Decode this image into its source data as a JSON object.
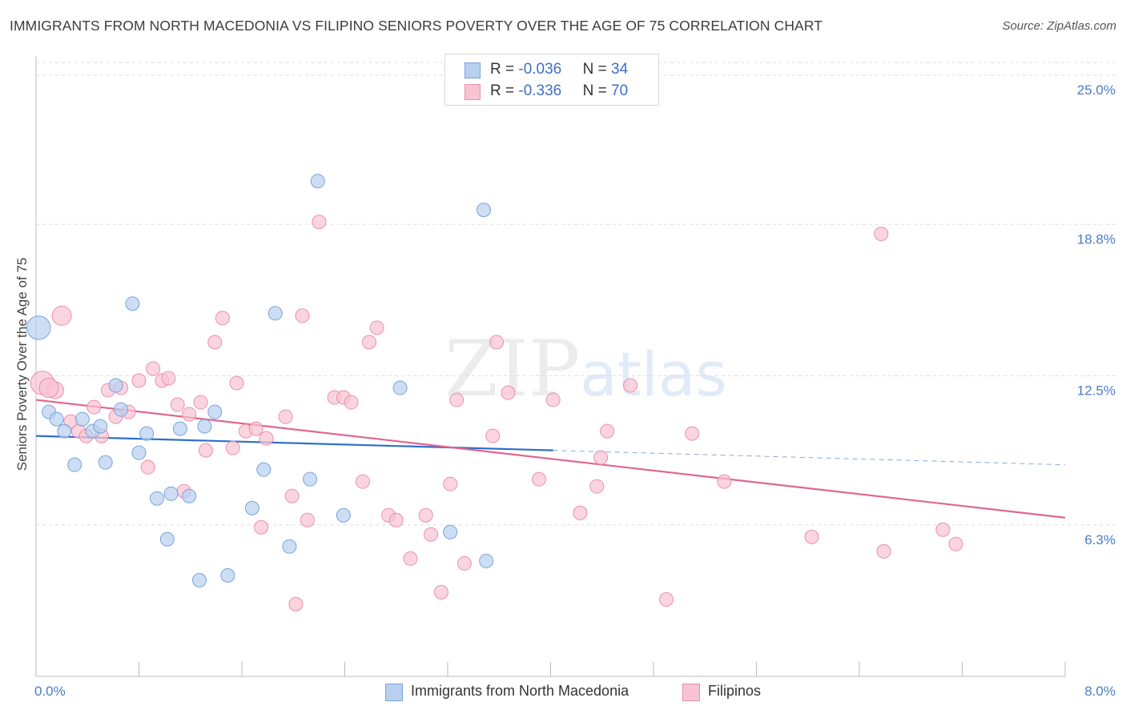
{
  "title": "IMMIGRANTS FROM NORTH MACEDONIA VS FILIPINO SENIORS POVERTY OVER THE AGE OF 75 CORRELATION CHART",
  "source": "Source: ZipAtlas.com",
  "watermark": {
    "zip": "ZIP",
    "atlas": "atlas"
  },
  "legend": {
    "rows": [
      {
        "r_label": "R = ",
        "r_value": "-0.036",
        "n_label": "N = ",
        "n_value": "34"
      },
      {
        "r_label": "R = ",
        "r_value": "-0.336",
        "n_label": "N = ",
        "n_value": "70"
      }
    ]
  },
  "bottom_legend": [
    {
      "label": "Immigrants from North Macedonia"
    },
    {
      "label": "Filipinos"
    }
  ],
  "colors": {
    "blue_fill": "#b8d0f0",
    "blue_stroke": "#7aa3dc",
    "blue_line": "#2f6fcc",
    "pink_fill": "#f8c3d3",
    "pink_stroke": "#ec8fac",
    "pink_line": "#e06690",
    "grid": "#dddddd",
    "tick_label": "#4a7cc7"
  },
  "chart_data": {
    "type": "scatter",
    "title": "IMMIGRANTS FROM NORTH MACEDONIA VS FILIPINO SENIORS POVERTY OVER THE AGE OF 75 CORRELATION CHART",
    "xlabel": "",
    "ylabel": "Seniors Poverty Over the Age of 75",
    "xlim": [
      0,
      8.0
    ],
    "ylim": [
      0,
      25.8
    ],
    "x_tick_labels": [
      "0.0%",
      "8.0%"
    ],
    "y_ticks": [
      6.3,
      12.5,
      18.8,
      25.0
    ],
    "y_tick_labels": [
      "6.3%",
      "12.5%",
      "18.8%",
      "25.0%"
    ],
    "grid": true,
    "legend_position": "top-center",
    "series": [
      {
        "name": "Immigrants from North Macedonia",
        "color": "#b8d0f0",
        "r": "-0.036",
        "n": "34",
        "trend": {
          "x": [
            0,
            4.02
          ],
          "y": [
            10.0,
            9.4
          ],
          "dashed_extension_to_x": 8.0,
          "dashed_end_y": 8.8
        },
        "points": [
          {
            "x": 0.02,
            "y": 14.5,
            "s": 3
          },
          {
            "x": 0.1,
            "y": 11.0,
            "s": 1
          },
          {
            "x": 0.16,
            "y": 10.7,
            "s": 1
          },
          {
            "x": 0.22,
            "y": 10.2,
            "s": 1
          },
          {
            "x": 0.3,
            "y": 8.8,
            "s": 1
          },
          {
            "x": 0.36,
            "y": 10.7,
            "s": 1
          },
          {
            "x": 0.44,
            "y": 10.2,
            "s": 1
          },
          {
            "x": 0.5,
            "y": 10.4,
            "s": 1
          },
          {
            "x": 0.54,
            "y": 8.9,
            "s": 1
          },
          {
            "x": 0.62,
            "y": 12.1,
            "s": 1
          },
          {
            "x": 0.66,
            "y": 11.1,
            "s": 1
          },
          {
            "x": 0.75,
            "y": 15.5,
            "s": 1
          },
          {
            "x": 0.8,
            "y": 9.3,
            "s": 1
          },
          {
            "x": 0.86,
            "y": 10.1,
            "s": 1
          },
          {
            "x": 0.94,
            "y": 7.4,
            "s": 1
          },
          {
            "x": 1.02,
            "y": 5.7,
            "s": 1
          },
          {
            "x": 1.05,
            "y": 7.6,
            "s": 1
          },
          {
            "x": 1.12,
            "y": 10.3,
            "s": 1
          },
          {
            "x": 1.19,
            "y": 7.5,
            "s": 1
          },
          {
            "x": 1.27,
            "y": 4.0,
            "s": 1
          },
          {
            "x": 1.31,
            "y": 10.4,
            "s": 1
          },
          {
            "x": 1.39,
            "y": 11.0,
            "s": 1
          },
          {
            "x": 1.49,
            "y": 4.2,
            "s": 1
          },
          {
            "x": 1.68,
            "y": 7.0,
            "s": 1
          },
          {
            "x": 1.77,
            "y": 8.6,
            "s": 1
          },
          {
            "x": 1.86,
            "y": 15.1,
            "s": 1
          },
          {
            "x": 1.97,
            "y": 5.4,
            "s": 1
          },
          {
            "x": 2.13,
            "y": 8.2,
            "s": 1
          },
          {
            "x": 2.19,
            "y": 20.6,
            "s": 1
          },
          {
            "x": 2.39,
            "y": 6.7,
            "s": 1
          },
          {
            "x": 2.83,
            "y": 12.0,
            "s": 1
          },
          {
            "x": 3.22,
            "y": 6.0,
            "s": 1
          },
          {
            "x": 3.5,
            "y": 4.8,
            "s": 1
          },
          {
            "x": 3.48,
            "y": 19.4,
            "s": 1
          }
        ]
      },
      {
        "name": "Filipinos",
        "color": "#f8c3d3",
        "r": "-0.336",
        "n": "70",
        "trend": {
          "x": [
            0,
            8.0
          ],
          "y": [
            11.5,
            6.6
          ]
        },
        "points": [
          {
            "x": 0.05,
            "y": 12.2,
            "s": 3
          },
          {
            "x": 0.15,
            "y": 11.9,
            "s": 1.5
          },
          {
            "x": 0.2,
            "y": 15.0,
            "s": 2
          },
          {
            "x": 0.27,
            "y": 10.6,
            "s": 1
          },
          {
            "x": 0.33,
            "y": 10.2,
            "s": 1
          },
          {
            "x": 0.39,
            "y": 10.0,
            "s": 1
          },
          {
            "x": 0.45,
            "y": 11.2,
            "s": 1
          },
          {
            "x": 0.51,
            "y": 10.0,
            "s": 1
          },
          {
            "x": 0.56,
            "y": 11.9,
            "s": 1
          },
          {
            "x": 0.62,
            "y": 10.8,
            "s": 1
          },
          {
            "x": 0.66,
            "y": 12.0,
            "s": 1
          },
          {
            "x": 0.72,
            "y": 11.0,
            "s": 1
          },
          {
            "x": 0.8,
            "y": 12.3,
            "s": 1
          },
          {
            "x": 0.87,
            "y": 8.7,
            "s": 1
          },
          {
            "x": 0.91,
            "y": 12.8,
            "s": 1
          },
          {
            "x": 0.98,
            "y": 12.3,
            "s": 1
          },
          {
            "x": 1.03,
            "y": 12.4,
            "s": 1
          },
          {
            "x": 1.1,
            "y": 11.3,
            "s": 1
          },
          {
            "x": 1.15,
            "y": 7.7,
            "s": 1
          },
          {
            "x": 1.19,
            "y": 10.9,
            "s": 1
          },
          {
            "x": 1.28,
            "y": 11.4,
            "s": 1
          },
          {
            "x": 1.32,
            "y": 9.4,
            "s": 1
          },
          {
            "x": 1.39,
            "y": 13.9,
            "s": 1
          },
          {
            "x": 1.45,
            "y": 14.9,
            "s": 1
          },
          {
            "x": 1.53,
            "y": 9.5,
            "s": 1
          },
          {
            "x": 1.56,
            "y": 12.2,
            "s": 1
          },
          {
            "x": 1.63,
            "y": 10.2,
            "s": 1
          },
          {
            "x": 1.71,
            "y": 10.3,
            "s": 1
          },
          {
            "x": 1.75,
            "y": 6.2,
            "s": 1
          },
          {
            "x": 1.79,
            "y": 9.9,
            "s": 1
          },
          {
            "x": 1.94,
            "y": 10.8,
            "s": 1
          },
          {
            "x": 1.99,
            "y": 7.5,
            "s": 1
          },
          {
            "x": 2.02,
            "y": 3.0,
            "s": 1
          },
          {
            "x": 2.07,
            "y": 15.0,
            "s": 1
          },
          {
            "x": 2.11,
            "y": 6.5,
            "s": 1
          },
          {
            "x": 2.2,
            "y": 18.9,
            "s": 1
          },
          {
            "x": 2.32,
            "y": 11.6,
            "s": 1
          },
          {
            "x": 2.39,
            "y": 11.6,
            "s": 1
          },
          {
            "x": 2.45,
            "y": 11.4,
            "s": 1
          },
          {
            "x": 2.54,
            "y": 8.1,
            "s": 1
          },
          {
            "x": 2.59,
            "y": 13.9,
            "s": 1
          },
          {
            "x": 2.65,
            "y": 14.5,
            "s": 1
          },
          {
            "x": 2.74,
            "y": 6.7,
            "s": 1
          },
          {
            "x": 2.8,
            "y": 6.5,
            "s": 1
          },
          {
            "x": 2.91,
            "y": 4.9,
            "s": 1
          },
          {
            "x": 3.03,
            "y": 6.7,
            "s": 1
          },
          {
            "x": 3.07,
            "y": 5.9,
            "s": 1
          },
          {
            "x": 3.15,
            "y": 3.5,
            "s": 1
          },
          {
            "x": 3.22,
            "y": 8.0,
            "s": 1
          },
          {
            "x": 3.27,
            "y": 11.5,
            "s": 1
          },
          {
            "x": 3.33,
            "y": 4.7,
            "s": 1
          },
          {
            "x": 3.55,
            "y": 10.0,
            "s": 1
          },
          {
            "x": 3.58,
            "y": 13.9,
            "s": 1
          },
          {
            "x": 3.67,
            "y": 11.8,
            "s": 1
          },
          {
            "x": 3.91,
            "y": 8.2,
            "s": 1
          },
          {
            "x": 4.02,
            "y": 11.5,
            "s": 1
          },
          {
            "x": 4.23,
            "y": 6.8,
            "s": 1
          },
          {
            "x": 4.36,
            "y": 7.9,
            "s": 1
          },
          {
            "x": 4.39,
            "y": 9.1,
            "s": 1
          },
          {
            "x": 4.44,
            "y": 10.2,
            "s": 1
          },
          {
            "x": 4.62,
            "y": 12.1,
            "s": 1
          },
          {
            "x": 4.9,
            "y": 3.2,
            "s": 1
          },
          {
            "x": 5.1,
            "y": 10.1,
            "s": 1
          },
          {
            "x": 5.35,
            "y": 8.1,
            "s": 1
          },
          {
            "x": 6.03,
            "y": 5.8,
            "s": 1
          },
          {
            "x": 6.57,
            "y": 18.4,
            "s": 1
          },
          {
            "x": 6.59,
            "y": 5.2,
            "s": 1
          },
          {
            "x": 7.05,
            "y": 6.1,
            "s": 1
          },
          {
            "x": 7.15,
            "y": 5.5,
            "s": 1
          },
          {
            "x": 0.1,
            "y": 12.0,
            "s": 2
          }
        ]
      }
    ]
  }
}
